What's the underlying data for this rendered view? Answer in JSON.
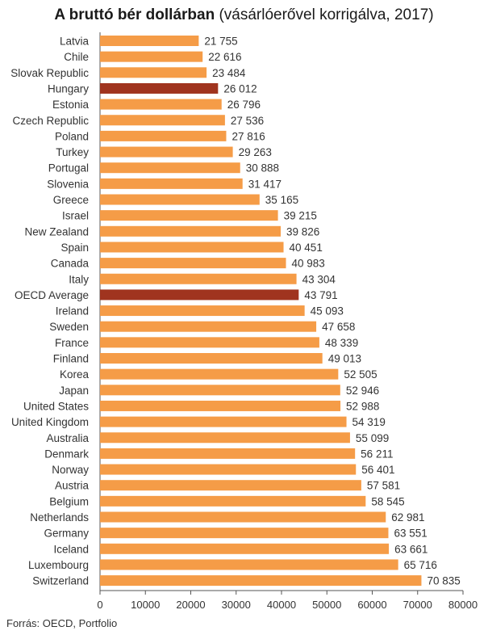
{
  "title": {
    "bold": "A bruttó bér dollárban",
    "rest": " (vásárlóerővel korrigálva, 2017)"
  },
  "source": "Forrás: OECD, Portfolio",
  "colors": {
    "bar": "#f59c47",
    "highlight": "#a0341f",
    "axis": "#555555",
    "grid": "#e6e6e6",
    "label": "#333333"
  },
  "chart_data": {
    "type": "bar",
    "orientation": "horizontal",
    "title": "A bruttó bér dollárban (vásárlóerővel korrigálva, 2017)",
    "xlabel": "",
    "ylabel": "",
    "xlim": [
      0,
      80000
    ],
    "ticks": [
      "0",
      "10000",
      "20000",
      "30000",
      "40000",
      "50000",
      "60000",
      "70000",
      "80000"
    ],
    "tick_values": [
      0,
      10000,
      20000,
      30000,
      40000,
      50000,
      60000,
      70000,
      80000
    ],
    "categories": [
      "Latvia",
      "Chile",
      "Slovak Republic",
      "Hungary",
      "Estonia",
      "Czech Republic",
      "Poland",
      "Turkey",
      "Portugal",
      "Slovenia",
      "Greece",
      "Israel",
      "New Zealand",
      "Spain",
      "Canada",
      "Italy",
      "OECD Average",
      "Ireland",
      "Sweden",
      "France",
      "Finland",
      "Korea",
      "Japan",
      "United States",
      "United Kingdom",
      "Australia",
      "Denmark",
      "Norway",
      "Austria",
      "Belgium",
      "Netherlands",
      "Germany",
      "Iceland",
      "Luxembourg",
      "Switzerland"
    ],
    "values": [
      21755,
      22616,
      23484,
      26012,
      26796,
      27536,
      27816,
      29263,
      30888,
      31417,
      35165,
      39215,
      39826,
      40451,
      40983,
      43304,
      43791,
      45093,
      47658,
      48339,
      49013,
      52505,
      52946,
      52988,
      54319,
      55099,
      56211,
      56401,
      57581,
      58545,
      62981,
      63551,
      63661,
      65716,
      70835
    ],
    "value_labels": [
      "21 755",
      "22 616",
      "23 484",
      "26 012",
      "26 796",
      "27 536",
      "27 816",
      "29 263",
      "30 888",
      "31 417",
      "35 165",
      "39 215",
      "39 826",
      "40 451",
      "40 983",
      "43 304",
      "43 791",
      "45 093",
      "47 658",
      "48 339",
      "49 013",
      "52 505",
      "52 946",
      "52 988",
      "54 319",
      "55 099",
      "56 211",
      "56 401",
      "57 581",
      "58 545",
      "62 981",
      "63 551",
      "63 661",
      "65 716",
      "70 835"
    ],
    "highlighted": [
      "Hungary",
      "OECD Average"
    ],
    "grid": false
  }
}
